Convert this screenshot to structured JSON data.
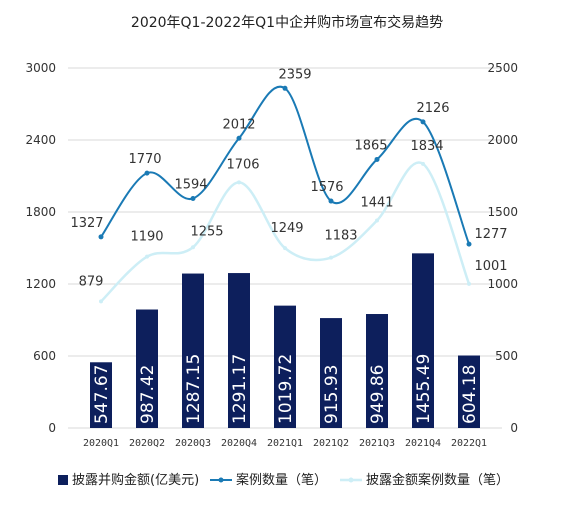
{
  "chart_data": {
    "type": "bar",
    "title": "2020年Q1-2022年Q1中企并购市场宣布交易趋势",
    "categories": [
      "2020Q1",
      "2020Q2",
      "2020Q3",
      "2020Q4",
      "2021Q1",
      "2021Q2",
      "2021Q3",
      "2021Q4",
      "2022Q1"
    ],
    "left_axis": {
      "ylim": [
        0,
        3000
      ],
      "ticks": [
        0,
        600,
        1200,
        1800,
        2400,
        3000
      ]
    },
    "right_axis": {
      "ylim": [
        0,
        2500
      ],
      "ticks": [
        0,
        500,
        1000,
        1500,
        2000,
        2500
      ]
    },
    "series": [
      {
        "name": "披露并购金额(亿美元)",
        "type": "bar",
        "axis": "left",
        "values": [
          547.67,
          987.42,
          1287.15,
          1291.17,
          1019.72,
          915.93,
          949.86,
          1455.49,
          604.18
        ],
        "labels": [
          "547.67",
          "987.42",
          "1287.15",
          "1291.17",
          "1019.72",
          "915.93",
          "949.86",
          "1455.49",
          "604.18"
        ],
        "color": "#0d1f5c"
      },
      {
        "name": "案例数量（笔）",
        "type": "line",
        "axis": "right",
        "values": [
          1327,
          1770,
          1594,
          2012,
          2359,
          1576,
          1865,
          2126,
          1277
        ],
        "labels": [
          "1327",
          "1770",
          "1594",
          "2012",
          "2359",
          "1576",
          "1865",
          "2126",
          "1277"
        ],
        "color": "#1a7ab5"
      },
      {
        "name": "披露金额案例数量（笔）",
        "type": "line",
        "axis": "right",
        "values": [
          879,
          1190,
          1255,
          1706,
          1249,
          1183,
          1441,
          1834,
          1001
        ],
        "labels": [
          "879",
          "1190",
          "1255",
          "1706",
          "1249",
          "1183",
          "1441",
          "1834",
          "1001"
        ],
        "color": "#cdeef6"
      }
    ],
    "grid": true,
    "legend": "bottom"
  }
}
